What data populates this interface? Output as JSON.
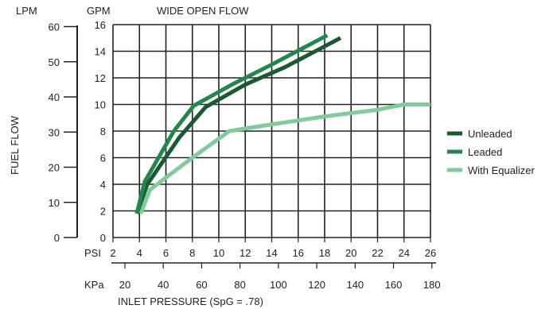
{
  "chart_data": {
    "type": "line",
    "title": "WIDE OPEN FLOW",
    "ylabel": "FUEL FLOW",
    "xlabel": "INLET PRESSURE (SpG = .78)",
    "x_unit": "PSI",
    "x_alt_unit": "KPa",
    "y_unit": "GPM",
    "y_alt_unit": "LPM",
    "xlim": [
      2,
      26
    ],
    "ylim": [
      0,
      16
    ],
    "x_ticks": [
      2,
      4,
      6,
      8,
      10,
      12,
      14,
      16,
      18,
      20,
      22,
      24,
      26
    ],
    "y_ticks": [
      0,
      2,
      4,
      6,
      8,
      10,
      12,
      14,
      16
    ],
    "x_alt_ticks": [
      20,
      40,
      60,
      80,
      100,
      120,
      140,
      160,
      180
    ],
    "y_alt_ticks": [
      0,
      10,
      20,
      30,
      40,
      50,
      60
    ],
    "grid": true,
    "legend_position": "right",
    "series": [
      {
        "name": "Unleaded",
        "color": "#1a5a32",
        "x": [
          3.8,
          4.6,
          7.0,
          9.0,
          12.0,
          15.0,
          19.2
        ],
        "y": [
          1.8,
          4.0,
          7.5,
          9.8,
          11.5,
          12.8,
          15.0
        ]
      },
      {
        "name": "Leaded",
        "color": "#22874a",
        "x": [
          3.8,
          4.4,
          6.6,
          8.1,
          11.0,
          14.0,
          18.2
        ],
        "y": [
          1.8,
          4.2,
          8.0,
          9.9,
          11.5,
          13.0,
          15.2
        ]
      },
      {
        "name": "With Equalizer",
        "color": "#7fcc98",
        "x": [
          4.1,
          4.8,
          6.0,
          8.0,
          10.8,
          14.0,
          18.0,
          22.0,
          24.0,
          26.0
        ],
        "y": [
          1.8,
          3.6,
          4.5,
          6.0,
          8.0,
          8.5,
          9.1,
          9.6,
          10.0,
          10.0
        ]
      }
    ]
  }
}
